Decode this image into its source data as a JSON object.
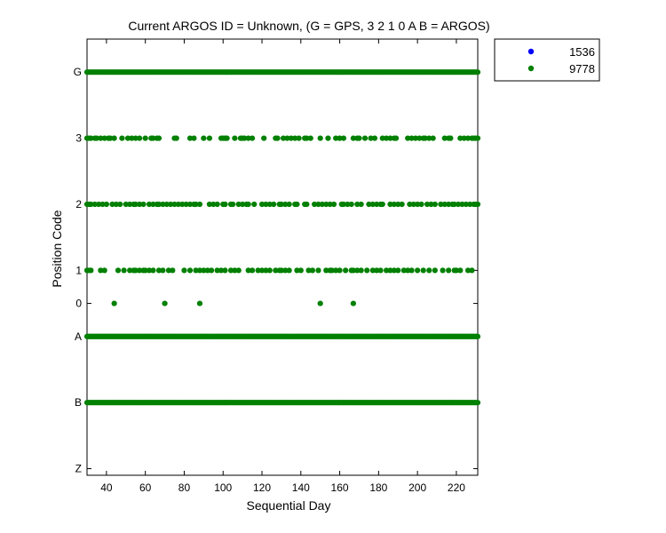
{
  "chart_data": {
    "type": "scatter",
    "title": "Current ARGOS ID = Unknown,  (G = GPS, 3 2 1 0 A B = ARGOS)",
    "xlabel": "Sequential Day",
    "ylabel": "Position Code",
    "xlim": [
      30,
      231
    ],
    "x_ticks": [
      40,
      60,
      80,
      100,
      120,
      140,
      160,
      180,
      200,
      220
    ],
    "y_categories": [
      "G",
      "3",
      "2",
      "1",
      "0",
      "A",
      "B",
      "Z"
    ],
    "y_levels": {
      "G": 3,
      "3": 2,
      "2": 1,
      "1": 0,
      "0": -0.5,
      "A": -1,
      "B": -2,
      "Z": -3
    },
    "ylim": [
      -3.1,
      3.5
    ],
    "grid": false,
    "legend_position": "outside-top-right",
    "series": [
      {
        "name": "1536",
        "color": "#0000ff",
        "points": []
      },
      {
        "name": "9778",
        "color": "#008000",
        "points": []
      }
    ],
    "code_days": {
      "G": {
        "dense": [
          30,
          231
        ]
      },
      "3": [
        30,
        31,
        32,
        34,
        35,
        37,
        39,
        41,
        42,
        44,
        48,
        51,
        53,
        55,
        57,
        60,
        63,
        64,
        66,
        67,
        75,
        76,
        83,
        85,
        90,
        93,
        99,
        100,
        101,
        102,
        106,
        109,
        110,
        111,
        113,
        115,
        121,
        127,
        128,
        131,
        133,
        135,
        137,
        139,
        142,
        143,
        145,
        150,
        154,
        158,
        160,
        162,
        167,
        169,
        170,
        173,
        176,
        178,
        182,
        184,
        186,
        188,
        189,
        195,
        197,
        199,
        201,
        203,
        204,
        206,
        208,
        214,
        216,
        217,
        222,
        224,
        226,
        228,
        229,
        230,
        231
      ],
      "2": [
        30,
        31,
        32,
        34,
        36,
        38,
        40,
        43,
        45,
        47,
        50,
        52,
        54,
        55,
        57,
        59,
        62,
        64,
        66,
        67,
        69,
        71,
        73,
        75,
        77,
        79,
        81,
        83,
        85,
        86,
        88,
        93,
        95,
        97,
        100,
        101,
        104,
        105,
        108,
        110,
        112,
        113,
        116,
        120,
        122,
        124,
        126,
        129,
        130,
        132,
        134,
        137,
        138,
        142,
        143,
        147,
        149,
        151,
        153,
        155,
        157,
        161,
        162,
        164,
        166,
        169,
        171,
        175,
        177,
        179,
        181,
        182,
        186,
        188,
        190,
        192,
        196,
        198,
        200,
        202,
        205,
        207,
        209,
        212,
        214,
        216,
        218,
        219,
        221,
        223,
        225,
        227,
        229,
        230,
        231
      ],
      "1": [
        30,
        31,
        32,
        37,
        39,
        46,
        49,
        52,
        54,
        55,
        57,
        59,
        60,
        62,
        64,
        67,
        69,
        72,
        74,
        80,
        83,
        86,
        88,
        90,
        92,
        94,
        97,
        99,
        101,
        104,
        106,
        108,
        113,
        115,
        118,
        120,
        122,
        124,
        127,
        129,
        130,
        132,
        134,
        138,
        140,
        144,
        146,
        149,
        153,
        155,
        156,
        158,
        160,
        163,
        166,
        167,
        169,
        171,
        174,
        177,
        179,
        181,
        184,
        186,
        188,
        190,
        193,
        195,
        197,
        200,
        203,
        206,
        209,
        213,
        216,
        219,
        220,
        222,
        226,
        228
      ],
      "0": [
        44,
        70,
        88,
        150,
        167
      ],
      "A": {
        "dense": [
          30,
          231
        ]
      },
      "B": {
        "dense": [
          30,
          231
        ]
      },
      "Z": []
    }
  }
}
